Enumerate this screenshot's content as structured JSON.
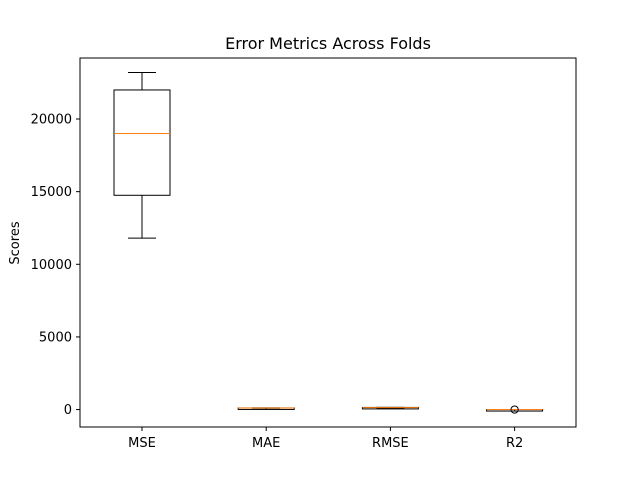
{
  "chart_data": {
    "type": "box",
    "title": "Error Metrics Across Folds",
    "xlabel": "",
    "ylabel": "Scores",
    "categories": [
      "MSE",
      "MAE",
      "RMSE",
      "R2"
    ],
    "ylim": [
      -1200,
      24200
    ],
    "yticks": [
      0,
      5000,
      10000,
      15000,
      20000
    ],
    "grid": false,
    "boxes": [
      {
        "category": "MSE",
        "whisker_low": 11800,
        "q1": 14750,
        "median": 19000,
        "q3": 22000,
        "whisker_high": 23200,
        "outliers": []
      },
      {
        "category": "MAE",
        "whisker_low": 88,
        "q1": 95,
        "median": 105,
        "q3": 112,
        "whisker_high": 118,
        "outliers": []
      },
      {
        "category": "RMSE",
        "whisker_low": 108,
        "q1": 121,
        "median": 137,
        "q3": 148,
        "whisker_high": 152,
        "outliers": []
      },
      {
        "category": "R2",
        "whisker_low": 0.6,
        "q1": 0.7,
        "median": 0.75,
        "q3": 0.8,
        "whisker_high": 0.85,
        "outliers": [
          0.2
        ]
      }
    ],
    "colors": {
      "box": "#000000",
      "median": "#ff7f0e",
      "axes": "#000000",
      "background": "#ffffff"
    }
  }
}
